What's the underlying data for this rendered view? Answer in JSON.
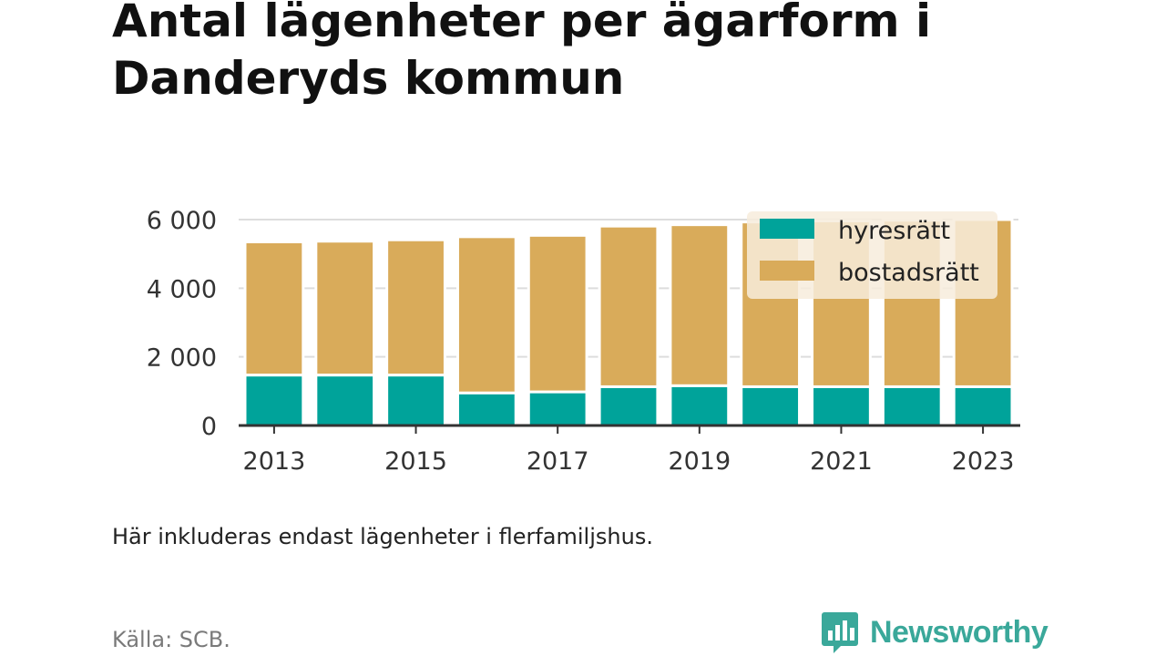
{
  "title": "Antal lägenheter per ägarform i Danderyds kommun",
  "note": "Här inkluderas endast lägenheter i flerfamiljshus.",
  "source": "Källa: SCB.",
  "brand": "Newsworthy",
  "colors": {
    "hyresratt": "#00a39a",
    "bostadsratt": "#d9ab5a",
    "grid": "#dddddd",
    "axis": "#333333",
    "legend_bg": "#f7ecdc",
    "brand": "#3aa89a"
  },
  "chart_data": {
    "type": "bar",
    "stacked": true,
    "x": [
      2013,
      2014,
      2015,
      2016,
      2017,
      2018,
      2019,
      2020,
      2021,
      2022,
      2023
    ],
    "x_tick_labels": [
      "2013",
      "2015",
      "2017",
      "2019",
      "2021",
      "2023"
    ],
    "series": [
      {
        "name": "hyresrätt",
        "values": [
          1470,
          1470,
          1470,
          950,
          980,
          1130,
          1160,
          1130,
          1130,
          1130,
          1130
        ]
      },
      {
        "name": "bostadsrätt",
        "values": [
          3880,
          3900,
          3940,
          4550,
          4560,
          4680,
          4690,
          4800,
          4830,
          4850,
          4870
        ]
      }
    ],
    "y_ticks": [
      0,
      2000,
      4000,
      6000
    ],
    "y_tick_labels": [
      "0",
      "2 000",
      "4 000",
      "6 000"
    ],
    "ylim": [
      0,
      6000
    ],
    "grid": true,
    "legend": "top-right"
  }
}
